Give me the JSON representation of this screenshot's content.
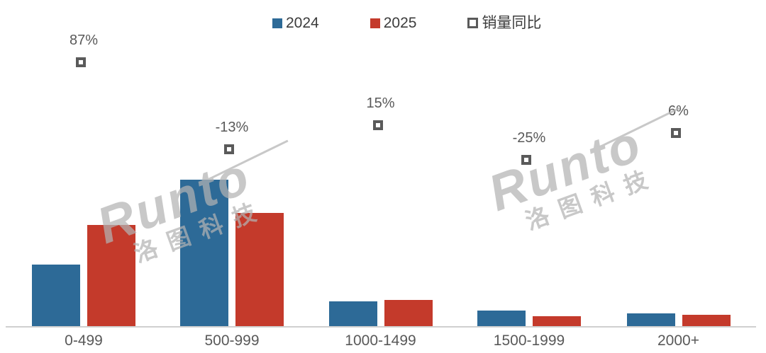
{
  "watermark": {
    "brand": "Runto",
    "brand_cn": "洛图科技"
  },
  "colors": {
    "bar_2024": "#2d6a97",
    "bar_2025": "#c43a2b",
    "axis_line": "#d0d0d0",
    "axis_label_text": "#595959",
    "yoy_label_text": "#595959",
    "legend_text": "#3c3c3c",
    "marker_border": "#5a5a5a"
  },
  "chart_data": {
    "type": "bar",
    "title": "",
    "xlabel": "",
    "ylabel": "",
    "grid": false,
    "legend_position": "top-center",
    "categories": [
      "0-499",
      "500-999",
      "1000-1499",
      "1500-1999",
      "2000+"
    ],
    "series": [
      {
        "name": "2024",
        "color": "#2d6a97",
        "values": [
          42,
          100,
          17,
          11,
          9
        ]
      },
      {
        "name": "2025",
        "color": "#c43a2b",
        "values": [
          69,
          77,
          18,
          7,
          8
        ]
      }
    ],
    "value_scale_note": "no y-axis shown; bar values are relative, tallest bar (2024, 500-999) = 100",
    "yoy": {
      "name": "销量同比",
      "marker": "hollow-square",
      "values_percent": [
        87,
        -13,
        15,
        -25,
        6
      ],
      "labels": [
        "87%",
        "-13%",
        "15%",
        "-25%",
        "6%"
      ]
    }
  }
}
